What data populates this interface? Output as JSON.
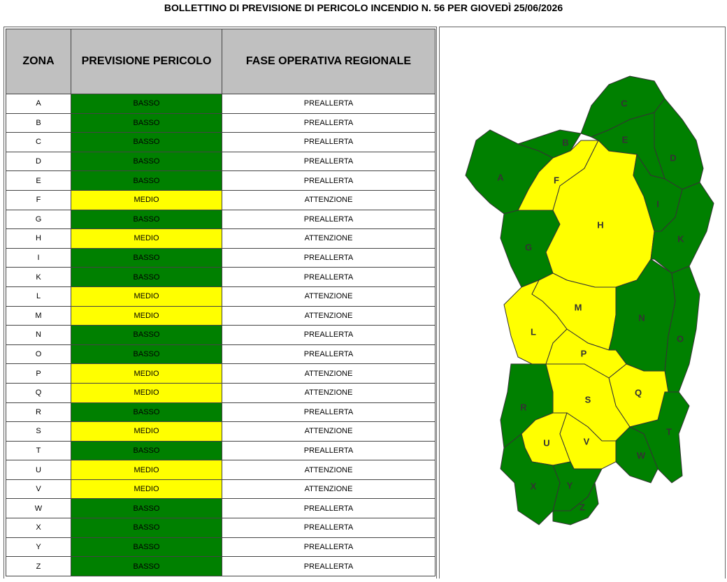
{
  "header": {
    "title": "BOLLETTINO DI PREVISIONE DI PERICOLO INCENDIO N. 56 PER GIOVEDÌ 25/06/2026"
  },
  "table": {
    "columns": [
      "ZONA",
      "PREVISIONE PERICOLO",
      "FASE OPERATIVA REGIONALE"
    ],
    "level_colors": {
      "BASSO": "#008000",
      "MEDIO": "#ffff00"
    },
    "rows": [
      [
        "A",
        "BASSO",
        "PREALLERTA"
      ],
      [
        "B",
        "BASSO",
        "PREALLERTA"
      ],
      [
        "C",
        "BASSO",
        "PREALLERTA"
      ],
      [
        "D",
        "BASSO",
        "PREALLERTA"
      ],
      [
        "E",
        "BASSO",
        "PREALLERTA"
      ],
      [
        "F",
        "MEDIO",
        "ATTENZIONE"
      ],
      [
        "G",
        "BASSO",
        "PREALLERTA"
      ],
      [
        "H",
        "MEDIO",
        "ATTENZIONE"
      ],
      [
        "I",
        "BASSO",
        "PREALLERTA"
      ],
      [
        "K",
        "BASSO",
        "PREALLERTA"
      ],
      [
        "L",
        "MEDIO",
        "ATTENZIONE"
      ],
      [
        "M",
        "MEDIO",
        "ATTENZIONE"
      ],
      [
        "N",
        "BASSO",
        "PREALLERTA"
      ],
      [
        "O",
        "BASSO",
        "PREALLERTA"
      ],
      [
        "P",
        "MEDIO",
        "ATTENZIONE"
      ],
      [
        "Q",
        "MEDIO",
        "ATTENZIONE"
      ],
      [
        "R",
        "BASSO",
        "PREALLERTA"
      ],
      [
        "S",
        "MEDIO",
        "ATTENZIONE"
      ],
      [
        "T",
        "BASSO",
        "PREALLERTA"
      ],
      [
        "U",
        "MEDIO",
        "ATTENZIONE"
      ],
      [
        "V",
        "MEDIO",
        "ATTENZIONE"
      ],
      [
        "W",
        "BASSO",
        "PREALLERTA"
      ],
      [
        "X",
        "BASSO",
        "PREALLERTA"
      ],
      [
        "Y",
        "BASSO",
        "PREALLERTA"
      ],
      [
        "Z",
        "BASSO",
        "PREALLERTA"
      ]
    ]
  }
}
